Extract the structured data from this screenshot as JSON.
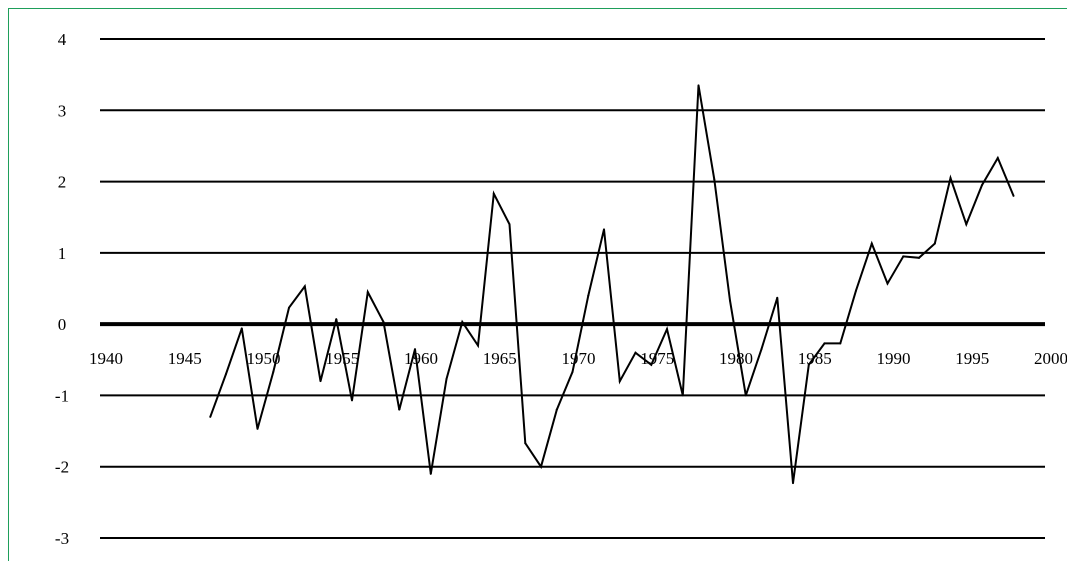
{
  "chart_data": {
    "type": "line",
    "title": "",
    "xlabel": "",
    "ylabel": "",
    "xlim": [
      1940,
      2000
    ],
    "ylim": [
      -3,
      4
    ],
    "x_ticks": [
      "1940",
      "1945",
      "1950",
      "1955",
      "1960",
      "1965",
      "1970",
      "1975",
      "1980",
      "1985",
      "1990",
      "1995",
      "2000"
    ],
    "y_ticks": [
      "4",
      "3",
      "2",
      "1",
      "0",
      "-1",
      "-2",
      "-3"
    ],
    "grid": "horizontal",
    "series": [
      {
        "name": "",
        "x": [
          1947,
          1948,
          1949,
          1950,
          1951,
          1952,
          1953,
          1954,
          1955,
          1956,
          1957,
          1958,
          1959,
          1960,
          1961,
          1962,
          1963,
          1964,
          1965,
          1966,
          1967,
          1968,
          1969,
          1970,
          1971,
          1972,
          1973,
          1974,
          1975,
          1976,
          1977,
          1978,
          1979,
          1980,
          1981,
          1982,
          1983,
          1984,
          1985,
          1986,
          1987,
          1988,
          1989,
          1990,
          1991,
          1992,
          1993,
          1994,
          1995,
          1996,
          1997,
          1998
        ],
        "y": [
          -1.3,
          -0.7,
          -0.06,
          -1.47,
          -0.67,
          0.23,
          0.53,
          -0.8,
          0.07,
          -1.07,
          0.45,
          0.03,
          -1.2,
          -0.35,
          -2.1,
          -0.77,
          0.03,
          -0.3,
          1.83,
          1.4,
          -1.67,
          -2.0,
          -1.2,
          -0.67,
          0.4,
          1.33,
          -0.8,
          -0.4,
          -0.57,
          -0.07,
          -1.0,
          3.35,
          2.03,
          0.33,
          -1.0,
          -0.35,
          0.37,
          -2.23,
          -0.57,
          -0.27,
          -0.27,
          0.47,
          1.13,
          0.57,
          0.95,
          0.93,
          1.13,
          2.05,
          1.4,
          1.95,
          2.33,
          1.8
        ]
      }
    ]
  }
}
